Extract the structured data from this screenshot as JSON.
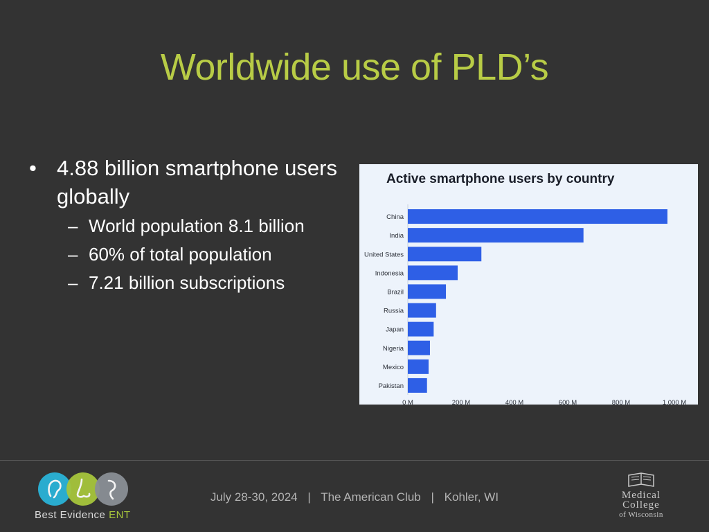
{
  "slide": {
    "title": "Worldwide use of PLD’s",
    "bullets": {
      "main": "4.88 billion smartphone users globally",
      "subs": [
        "World population 8.1 billion",
        "60% of total population",
        "7.21 billion subscriptions"
      ]
    }
  },
  "chart_data": {
    "type": "bar",
    "orientation": "horizontal",
    "title": "Active smartphone users by country",
    "categories": [
      "China",
      "India",
      "United States",
      "Indonesia",
      "Brazil",
      "Russia",
      "Japan",
      "Nigeria",
      "Mexico",
      "Pakistan"
    ],
    "values": [
      974,
      659,
      276,
      187,
      143,
      106,
      97,
      83,
      78,
      72
    ],
    "value_unit": "M",
    "xticks": [
      "0 M",
      "200 M",
      "400 M",
      "600 M",
      "800 M",
      "1,000 M"
    ],
    "xlim": [
      0,
      1000
    ],
    "bar_color": "#2e5fe6",
    "background_color": "#edf3fb"
  },
  "footer": {
    "date": "July 28-30, 2024",
    "venue": "The American Club",
    "location": "Kohler, WI",
    "separator": "|"
  },
  "logos": {
    "left": {
      "text_main": "Best Evidence ",
      "text_accent": "ENT",
      "colors": [
        "#2ab3d8",
        "#a6c53c",
        "#8a8f95"
      ]
    },
    "right": {
      "lines": [
        "Medical",
        "College",
        "of Wisconsin"
      ]
    }
  },
  "colors": {
    "background": "#333333",
    "title": "#b8cc46",
    "text": "#ffffff"
  }
}
